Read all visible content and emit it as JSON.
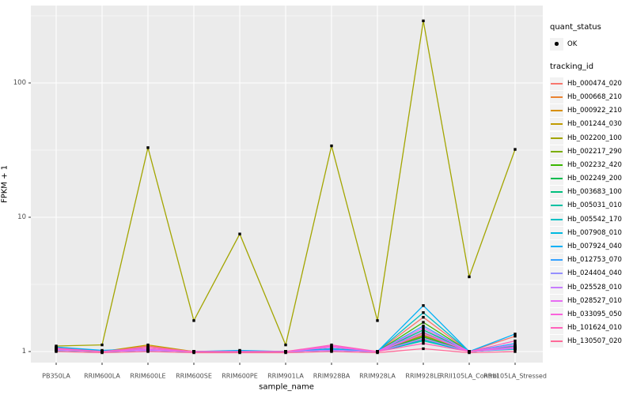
{
  "figure": {
    "background": "#FFFFFF",
    "panel_background": "#EBEBEB",
    "grid_color": "#FFFFFF",
    "tick_color": "#333333",
    "axis_text_color": "#4D4D4D"
  },
  "legend": {
    "quant_status_title": "quant_status",
    "quant_status_items": [
      {
        "label": "OK",
        "marker": "point-icon",
        "color": "#000000"
      }
    ],
    "tracking_id_title": "tracking_id"
  },
  "chart_data": {
    "type": "line",
    "title": "",
    "xlabel": "sample_name",
    "ylabel": "FPKM + 1",
    "y_scale": "log10",
    "grid": true,
    "legend_position": "right",
    "y_ticks": [
      1,
      10,
      100
    ],
    "y_tick_labels": [
      "1",
      "10",
      "100"
    ],
    "y_minor_ticks": [
      3.162,
      31.62,
      316.2
    ],
    "ylim": [
      0.83,
      377
    ],
    "point_status": "OK",
    "categories": [
      "PB350LA",
      "RRIM600LA",
      "RRIM600LE",
      "RRIM600SE",
      "RRIM600PE",
      "RRIM901LA",
      "RRIM928BA",
      "RRIM928LA",
      "RRIM928LE",
      "RRII105LA_Control",
      "RRII105LA_Stressed"
    ],
    "series": [
      {
        "name": "Hb_000474_020",
        "color": "#F8766D",
        "values": [
          1.05,
          1.0,
          1.1,
          1.0,
          1.0,
          1.0,
          1.05,
          1.0,
          1.8,
          1.0,
          1.3
        ]
      },
      {
        "name": "Hb_000668_210",
        "color": "#EA8331",
        "values": [
          1.02,
          1.0,
          1.05,
          1.0,
          1.0,
          1.0,
          1.02,
          1.0,
          1.38,
          1.0,
          1.06
        ]
      },
      {
        "name": "Hb_000922_210",
        "color": "#D89000",
        "values": [
          1.08,
          1.0,
          1.08,
          1.0,
          1.0,
          1.0,
          1.05,
          1.0,
          1.3,
          1.0,
          1.1
        ]
      },
      {
        "name": "Hb_001244_030",
        "color": "#C09B00",
        "values": [
          1.03,
          1.0,
          1.12,
          1.0,
          1.0,
          1.0,
          1.08,
          1.0,
          1.24,
          1.0,
          1.05
        ]
      },
      {
        "name": "Hb_002200_100",
        "color": "#A3A500",
        "values": [
          1.1,
          1.12,
          33,
          1.7,
          7.5,
          1.12,
          34,
          1.7,
          290,
          3.6,
          32
        ]
      },
      {
        "name": "Hb_002217_290",
        "color": "#7CAE00",
        "values": [
          1.02,
          1.0,
          1.02,
          1.0,
          1.0,
          1.0,
          1.02,
          1.0,
          1.32,
          1.0,
          1.05
        ]
      },
      {
        "name": "Hb_002232_420",
        "color": "#39B600",
        "values": [
          1.05,
          1.0,
          1.03,
          1.0,
          1.0,
          1.0,
          1.03,
          1.0,
          1.65,
          1.0,
          1.08
        ]
      },
      {
        "name": "Hb_002249_200",
        "color": "#00BB4E",
        "values": [
          1.02,
          1.0,
          1.02,
          1.0,
          1.0,
          1.0,
          1.02,
          1.0,
          1.28,
          1.0,
          1.05
        ]
      },
      {
        "name": "Hb_003683_100",
        "color": "#00BF7D",
        "values": [
          1.04,
          1.0,
          1.02,
          1.0,
          1.0,
          1.0,
          1.02,
          1.0,
          1.45,
          1.0,
          1.06
        ]
      },
      {
        "name": "Hb_005031_010",
        "color": "#00C1A3",
        "values": [
          1.02,
          1.0,
          1.02,
          1.0,
          1.0,
          1.0,
          1.02,
          1.0,
          1.2,
          1.0,
          1.04
        ]
      },
      {
        "name": "Hb_005542_170",
        "color": "#00BFC4",
        "values": [
          1.06,
          1.0,
          1.03,
          1.0,
          1.0,
          1.0,
          1.03,
          1.0,
          1.95,
          1.0,
          1.1
        ]
      },
      {
        "name": "Hb_007908_010",
        "color": "#00BAE0",
        "values": [
          1.03,
          1.0,
          1.02,
          1.0,
          1.0,
          1.0,
          1.02,
          1.0,
          1.22,
          1.0,
          1.05
        ]
      },
      {
        "name": "Hb_007924_040",
        "color": "#00B0F6",
        "values": [
          1.08,
          1.02,
          1.05,
          1.0,
          1.02,
          1.0,
          1.05,
          1.0,
          2.2,
          1.0,
          1.35
        ]
      },
      {
        "name": "Hb_012753_070",
        "color": "#35A2FF",
        "values": [
          1.04,
          1.0,
          1.03,
          1.0,
          1.0,
          1.0,
          1.03,
          1.0,
          1.55,
          1.0,
          1.15
        ]
      },
      {
        "name": "Hb_024404_040",
        "color": "#9590FF",
        "values": [
          1.02,
          1.0,
          1.02,
          1.0,
          1.0,
          1.0,
          1.02,
          1.0,
          1.4,
          1.0,
          1.05
        ]
      },
      {
        "name": "Hb_025528_010",
        "color": "#C77CFF",
        "values": [
          1.03,
          1.0,
          1.02,
          1.0,
          1.0,
          1.0,
          1.02,
          1.0,
          1.25,
          1.0,
          1.06
        ]
      },
      {
        "name": "Hb_028527_010",
        "color": "#E76BF3",
        "values": [
          1.05,
          1.0,
          1.04,
          1.0,
          1.0,
          1.0,
          1.08,
          1.0,
          1.5,
          1.0,
          1.12
        ]
      },
      {
        "name": "Hb_033095_050",
        "color": "#FA62DB",
        "values": [
          1.04,
          1.0,
          1.05,
          1.0,
          1.0,
          1.0,
          1.1,
          1.0,
          1.35,
          1.0,
          1.08
        ]
      },
      {
        "name": "Hb_101624_010",
        "color": "#FF62BC",
        "values": [
          1.06,
          1.0,
          1.08,
          1.0,
          1.0,
          1.0,
          1.12,
          1.0,
          1.15,
          1.0,
          1.2
        ]
      },
      {
        "name": "Hb_130507_020",
        "color": "#FF6A98",
        "values": [
          1.0,
          0.98,
          1.0,
          0.98,
          0.98,
          0.98,
          1.0,
          0.98,
          1.05,
          0.98,
          1.0
        ]
      }
    ]
  }
}
